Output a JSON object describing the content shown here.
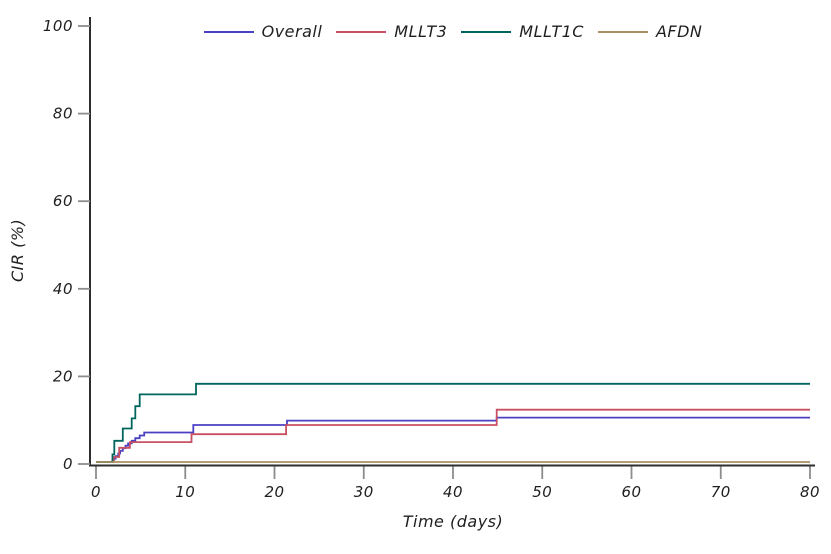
{
  "chart_data": {
    "type": "line",
    "subtype": "step",
    "title": "",
    "xlabel": "Time (days)",
    "ylabel": "CIR (%)",
    "xlim": [
      0,
      80
    ],
    "ylim": [
      0,
      100
    ],
    "x_ticks": [
      0,
      10,
      20,
      30,
      40,
      50,
      60,
      70,
      80
    ],
    "y_ticks": [
      0,
      20,
      40,
      60,
      80,
      100
    ],
    "grid": false,
    "legend_position": "top-center",
    "colors": {
      "axis_spine": "#2e2e2e",
      "tick": "#8c8c8c",
      "text": "#1f1f1f"
    },
    "series": [
      {
        "name": "Overall",
        "color": "#4a40c4",
        "points": [
          [
            0,
            0
          ],
          [
            1.8,
            0
          ],
          [
            1.8,
            0.6
          ],
          [
            2,
            0.6
          ],
          [
            2,
            1.2
          ],
          [
            2.2,
            1.2
          ],
          [
            2.2,
            1.8
          ],
          [
            2.5,
            1.8
          ],
          [
            2.5,
            2.4
          ],
          [
            2.7,
            2.4
          ],
          [
            2.7,
            3
          ],
          [
            3,
            3
          ],
          [
            3,
            3.6
          ],
          [
            3.3,
            3.6
          ],
          [
            3.3,
            4.2
          ],
          [
            3.6,
            4.2
          ],
          [
            3.6,
            4.7
          ],
          [
            4,
            4.7
          ],
          [
            4,
            5.3
          ],
          [
            4.4,
            5.3
          ],
          [
            4.4,
            5.9
          ],
          [
            4.9,
            5.9
          ],
          [
            4.9,
            6.5
          ],
          [
            5.4,
            6.5
          ],
          [
            5.4,
            7.2
          ],
          [
            10.9,
            7.2
          ],
          [
            10.9,
            8.9
          ],
          [
            21.4,
            8.9
          ],
          [
            21.4,
            9.9
          ],
          [
            44.9,
            9.9
          ],
          [
            44.9,
            10.6
          ],
          [
            80,
            10.6
          ]
        ]
      },
      {
        "name": "MLLT3",
        "color": "#c85062",
        "points": [
          [
            0,
            0
          ],
          [
            2,
            0
          ],
          [
            2,
            1.6
          ],
          [
            2.6,
            1.6
          ],
          [
            2.6,
            3.7
          ],
          [
            3.8,
            3.7
          ],
          [
            3.8,
            5
          ],
          [
            10.7,
            5
          ],
          [
            10.7,
            6.8
          ],
          [
            21.3,
            6.8
          ],
          [
            21.3,
            8.9
          ],
          [
            44.9,
            8.9
          ],
          [
            44.9,
            12.4
          ],
          [
            80,
            12.4
          ]
        ]
      },
      {
        "name": "MLLT1C",
        "color": "#00655d",
        "points": [
          [
            0,
            0
          ],
          [
            1.85,
            0
          ],
          [
            1.85,
            2.2
          ],
          [
            2.05,
            2.2
          ],
          [
            2.05,
            5.3
          ],
          [
            3,
            5.3
          ],
          [
            3,
            8.1
          ],
          [
            4,
            8.1
          ],
          [
            4,
            10.4
          ],
          [
            4.4,
            10.4
          ],
          [
            4.4,
            13.2
          ],
          [
            4.9,
            13.2
          ],
          [
            4.9,
            15.9
          ],
          [
            11.2,
            15.9
          ],
          [
            11.2,
            18.3
          ],
          [
            80,
            18.3
          ]
        ]
      },
      {
        "name": "AFDN",
        "color": "#a89062",
        "points": [
          [
            0,
            0
          ],
          [
            80,
            0
          ]
        ]
      }
    ]
  }
}
